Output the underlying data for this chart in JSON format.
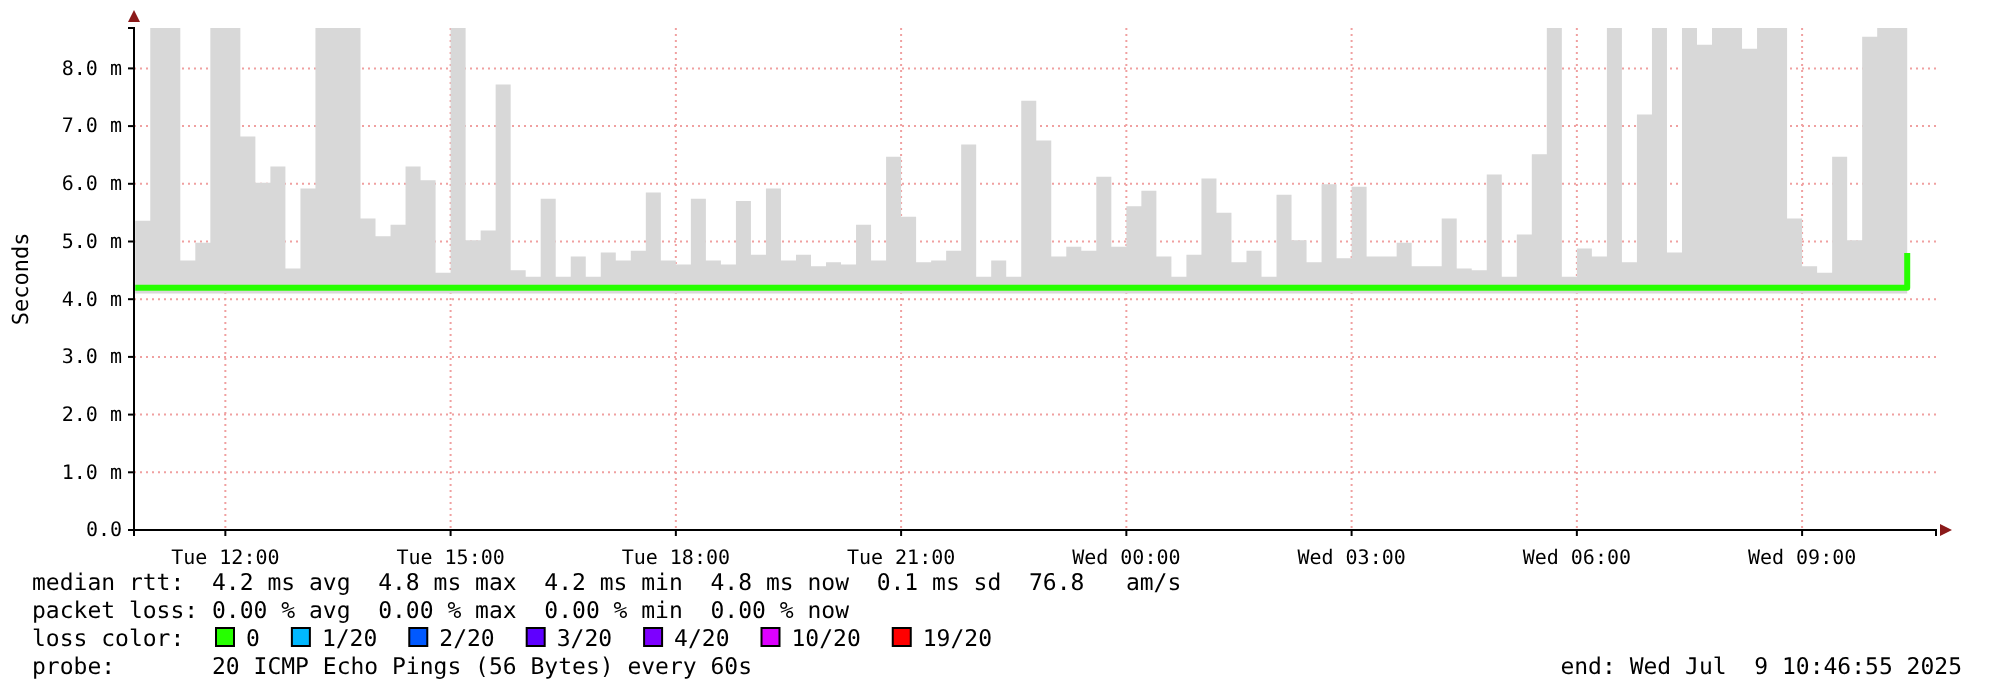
{
  "chart_data": {
    "type": "step",
    "ylabel": "Seconds",
    "legend_title": "loss color:",
    "legend": "bottom left",
    "grid": true,
    "annotations": [
      "median rtt:  4.2 ms avg  4.8 ms max  4.2 ms min  4.8 ms now  0.1 ms sd  76.8   am/s",
      "packet loss: 0.00 % avg  0.00 % max  0.00 % min  0.00 % now",
      "probe:       20 ICMP Echo Pings (56 Bytes) every 60s",
      "end: Wed Jul  9 10:46:55 2025"
    ],
    "xlim": [
      "2025-07-08T10:47",
      "2025-07-09T10:47"
    ],
    "xticks": [
      {
        "value": "2025-07-08T12:00",
        "label": "Tue 12:00"
      },
      {
        "value": "2025-07-08T15:00",
        "label": "Tue 15:00"
      },
      {
        "value": "2025-07-08T18:00",
        "label": "Tue 18:00"
      },
      {
        "value": "2025-07-08T21:00",
        "label": "Tue 21:00"
      },
      {
        "value": "2025-07-09T00:00",
        "label": "Wed 00:00"
      },
      {
        "value": "2025-07-09T03:00",
        "label": "Wed 03:00"
      },
      {
        "value": "2025-07-09T06:00",
        "label": "Wed 06:00"
      },
      {
        "value": "2025-07-09T09:00",
        "label": "Wed 09:00"
      }
    ],
    "ylim": [
      0,
      8.7
    ],
    "yticks": [
      {
        "value": 0,
        "label": "0.0"
      },
      {
        "value": 1,
        "label": "1.0 m"
      },
      {
        "value": 2,
        "label": "2.0 m"
      },
      {
        "value": 3,
        "label": "3.0 m"
      },
      {
        "value": 4,
        "label": "4.0 m"
      },
      {
        "value": 5,
        "label": "5.0 m"
      },
      {
        "value": 6,
        "label": "6.0 m"
      },
      {
        "value": 7,
        "label": "7.0 m"
      },
      {
        "value": 8,
        "label": "8.0 m"
      }
    ],
    "series": [
      {
        "name": "0",
        "color": "#26ff00",
        "x": [
          "2025-07-08T10:48",
          "2025-07-08T11:00",
          "2025-07-08T11:12",
          "2025-07-08T11:24",
          "2025-07-08T11:36",
          "2025-07-08T11:48",
          "2025-07-08T12:00",
          "2025-07-08T12:12",
          "2025-07-08T12:24",
          "2025-07-08T12:36",
          "2025-07-08T12:48",
          "2025-07-08T13:00",
          "2025-07-08T13:12",
          "2025-07-08T13:24",
          "2025-07-08T13:36",
          "2025-07-08T13:48",
          "2025-07-08T14:00",
          "2025-07-08T14:12",
          "2025-07-08T14:24",
          "2025-07-08T14:36",
          "2025-07-08T14:48",
          "2025-07-08T15:00",
          "2025-07-08T15:12",
          "2025-07-08T15:24",
          "2025-07-08T15:36",
          "2025-07-08T15:48",
          "2025-07-08T16:00",
          "2025-07-08T16:12",
          "2025-07-08T16:24",
          "2025-07-08T16:36",
          "2025-07-08T16:48",
          "2025-07-08T17:00",
          "2025-07-08T17:12",
          "2025-07-08T17:24",
          "2025-07-08T17:36",
          "2025-07-08T17:48",
          "2025-07-08T18:00",
          "2025-07-08T18:12",
          "2025-07-08T18:24",
          "2025-07-08T18:36",
          "2025-07-08T18:48",
          "2025-07-08T19:00",
          "2025-07-08T19:12",
          "2025-07-08T19:24",
          "2025-07-08T19:36",
          "2025-07-08T19:48",
          "2025-07-08T20:00",
          "2025-07-08T20:12",
          "2025-07-08T20:24",
          "2025-07-08T20:36",
          "2025-07-08T20:48",
          "2025-07-08T21:00",
          "2025-07-08T21:12",
          "2025-07-08T21:24",
          "2025-07-08T21:36",
          "2025-07-08T21:48",
          "2025-07-08T22:00",
          "2025-07-08T22:12",
          "2025-07-08T22:24",
          "2025-07-08T22:36",
          "2025-07-08T22:48",
          "2025-07-08T23:00",
          "2025-07-08T23:12",
          "2025-07-08T23:24",
          "2025-07-08T23:36",
          "2025-07-08T23:48",
          "2025-07-09T00:00",
          "2025-07-09T00:12",
          "2025-07-09T00:24",
          "2025-07-09T00:36",
          "2025-07-09T00:48",
          "2025-07-09T01:00",
          "2025-07-09T01:12",
          "2025-07-09T01:24",
          "2025-07-09T01:36",
          "2025-07-09T01:48",
          "2025-07-09T02:00",
          "2025-07-09T02:12",
          "2025-07-09T02:24",
          "2025-07-09T02:36",
          "2025-07-09T02:48",
          "2025-07-09T03:00",
          "2025-07-09T03:12",
          "2025-07-09T03:24",
          "2025-07-09T03:36",
          "2025-07-09T03:48",
          "2025-07-09T04:00",
          "2025-07-09T04:12",
          "2025-07-09T04:24",
          "2025-07-09T04:36",
          "2025-07-09T04:48",
          "2025-07-09T05:00",
          "2025-07-09T05:12",
          "2025-07-09T05:24",
          "2025-07-09T05:36",
          "2025-07-09T05:48",
          "2025-07-09T06:00",
          "2025-07-09T06:12",
          "2025-07-09T06:24",
          "2025-07-09T06:36",
          "2025-07-09T06:48",
          "2025-07-09T07:00",
          "2025-07-09T07:12",
          "2025-07-09T07:24",
          "2025-07-09T07:36",
          "2025-07-09T07:48",
          "2025-07-09T08:00",
          "2025-07-09T08:12",
          "2025-07-09T08:24",
          "2025-07-09T08:36",
          "2025-07-09T08:48",
          "2025-07-09T09:00",
          "2025-07-09T09:12",
          "2025-07-09T09:24",
          "2025-07-09T09:36",
          "2025-07-09T09:48",
          "2025-07-09T10:00",
          "2025-07-09T10:12",
          "2025-07-09T10:24"
        ],
        "values": [
          4.2,
          4.2,
          4.2,
          4.2,
          4.2,
          4.2,
          4.2,
          4.2,
          4.2,
          4.2,
          4.2,
          4.2,
          4.2,
          4.2,
          4.2,
          4.2,
          4.2,
          4.2,
          4.2,
          4.2,
          4.2,
          4.2,
          4.2,
          4.2,
          4.2,
          4.2,
          4.2,
          4.2,
          4.2,
          4.2,
          4.2,
          4.2,
          4.2,
          4.2,
          4.2,
          4.2,
          4.2,
          4.2,
          4.2,
          4.2,
          4.2,
          4.2,
          4.2,
          4.2,
          4.2,
          4.2,
          4.2,
          4.2,
          4.2,
          4.2,
          4.2,
          4.2,
          4.2,
          4.2,
          4.2,
          4.2,
          4.2,
          4.2,
          4.2,
          4.2,
          4.2,
          4.2,
          4.2,
          4.2,
          4.2,
          4.2,
          4.2,
          4.2,
          4.2,
          4.2,
          4.2,
          4.2,
          4.2,
          4.2,
          4.2,
          4.2,
          4.2,
          4.2,
          4.2,
          4.2,
          4.2,
          4.2,
          4.2,
          4.2,
          4.2,
          4.2,
          4.2,
          4.2,
          4.2,
          4.2,
          4.2,
          4.2,
          4.2,
          4.2,
          4.2,
          4.2,
          4.2,
          4.2,
          4.2,
          4.2,
          4.2,
          4.2,
          4.2,
          4.2,
          4.2,
          4.2,
          4.2,
          4.2,
          4.2,
          4.2,
          4.2,
          4.2,
          4.2,
          4.2,
          4.2,
          4.2,
          4.2,
          4.2,
          4.8
        ],
        "lower": [
          4.1,
          4.1,
          4.1,
          4.1,
          4.1,
          4.1,
          4.1,
          4.1,
          4.1,
          4.1,
          4.1,
          4.1,
          4.1,
          4.1,
          4.1,
          4.1,
          4.1,
          4.1,
          4.1,
          4.1,
          4.1,
          4.1,
          4.1,
          4.1,
          4.1,
          4.1,
          4.1,
          4.1,
          4.1,
          4.1,
          4.1,
          4.1,
          4.1,
          4.1,
          4.1,
          4.1,
          4.1,
          4.1,
          4.1,
          4.1,
          4.1,
          4.1,
          4.1,
          4.1,
          4.1,
          4.1,
          4.1,
          4.1,
          4.1,
          4.1,
          4.1,
          4.1,
          4.1,
          4.1,
          4.1,
          4.1,
          4.1,
          4.1,
          4.1,
          4.1,
          4.1,
          4.1,
          4.1,
          4.1,
          4.1,
          4.1,
          4.1,
          4.1,
          4.1,
          4.1,
          4.1,
          4.1,
          4.1,
          4.1,
          4.1,
          4.1,
          4.1,
          4.1,
          4.1,
          4.1,
          4.1,
          4.1,
          4.1,
          4.1,
          4.1,
          4.1,
          4.1,
          4.1,
          4.1,
          4.1,
          4.1,
          4.1,
          4.1,
          4.1,
          4.1,
          4.1,
          4.1,
          4.1,
          4.1,
          4.1,
          4.1,
          4.1,
          4.1,
          4.1,
          4.1,
          4.1,
          4.1,
          4.1,
          4.1,
          4.1,
          4.1,
          4.1,
          4.1,
          4.1,
          4.1,
          4.1,
          4.1,
          4.1,
          4.1
        ],
        "upper": [
          5.36,
          8.7,
          8.7,
          4.67,
          4.98,
          8.7,
          8.7,
          6.82,
          6.02,
          6.3,
          4.53,
          5.92,
          8.7,
          8.7,
          8.7,
          5.4,
          5.09,
          5.29,
          6.3,
          6.06,
          4.46,
          8.7,
          5.02,
          5.19,
          7.72,
          4.5,
          4.39,
          5.74,
          4.39,
          4.74,
          4.39,
          4.81,
          4.67,
          4.84,
          5.85,
          4.67,
          4.6,
          5.74,
          4.67,
          4.6,
          5.7,
          4.77,
          5.92,
          4.67,
          4.77,
          4.57,
          4.64,
          4.6,
          5.29,
          4.67,
          6.47,
          5.43,
          4.64,
          4.67,
          4.84,
          6.68,
          4.39,
          4.67,
          4.39,
          7.44,
          6.75,
          4.74,
          4.91,
          4.84,
          6.12,
          4.91,
          5.61,
          5.88,
          4.74,
          4.39,
          4.77,
          6.09,
          5.5,
          4.64,
          4.84,
          4.39,
          5.81,
          5.02,
          4.64,
          5.99,
          4.71,
          5.95,
          4.74,
          4.74,
          4.98,
          4.57,
          4.57,
          5.4,
          4.53,
          4.5,
          6.16,
          4.39,
          5.12,
          6.51,
          8.7,
          4.39,
          4.88,
          4.74,
          8.7,
          4.64,
          7.2,
          8.7,
          4.81,
          8.7,
          8.41,
          8.7,
          8.7,
          8.34,
          8.7,
          8.7,
          5.4,
          4.57,
          4.46,
          6.47,
          5.02,
          8.55,
          8.7,
          8.7,
          8.7
        ]
      },
      {
        "name": "1/20",
        "color": "#00b8ff"
      },
      {
        "name": "2/20",
        "color": "#0059ff"
      },
      {
        "name": "3/20",
        "color": "#5e00ff"
      },
      {
        "name": "4/20",
        "color": "#7e00ff"
      },
      {
        "name": "10/20",
        "color": "#dd00ff"
      },
      {
        "name": "19/20",
        "color": "#ff0000"
      }
    ]
  }
}
